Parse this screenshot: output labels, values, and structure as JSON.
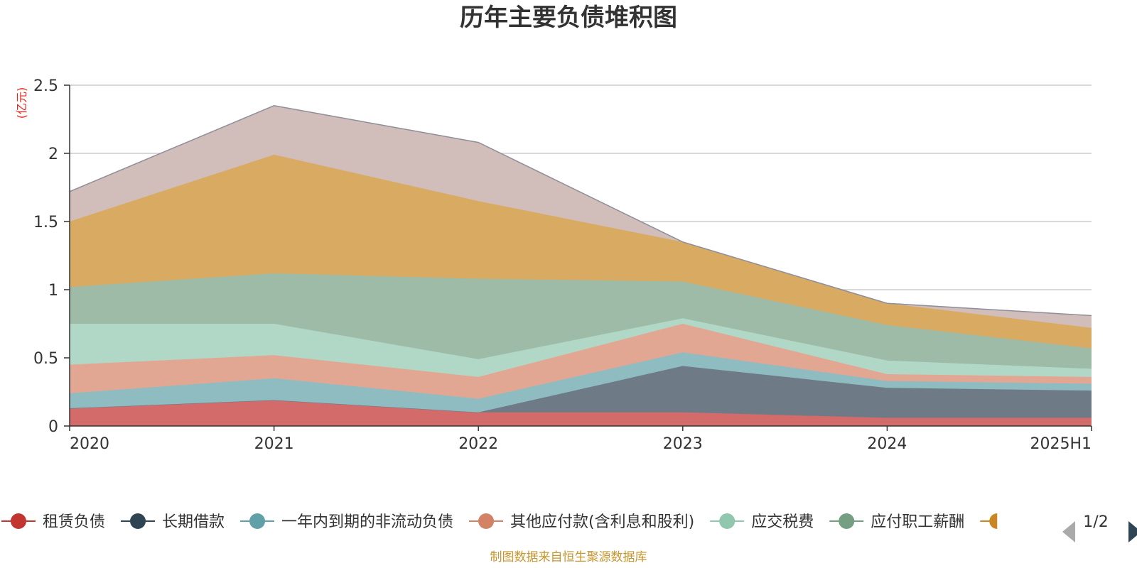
{
  "chart_data": {
    "type": "area",
    "stacked": true,
    "title": "历年主要负债堆积图",
    "ylabel": "(亿元)",
    "ylim": [
      0,
      2.5
    ],
    "y_ticks": [
      "0",
      "0.5",
      "1",
      "1.5",
      "2",
      "2.5"
    ],
    "categories": [
      "2020",
      "2021",
      "2022",
      "2023",
      "2024",
      "2025H1"
    ],
    "series": [
      {
        "name": "租赁负债",
        "color": "#d46b6b",
        "marker": "#c23531",
        "values": [
          0.13,
          0.19,
          0.1,
          0.1,
          0.06,
          0.06
        ]
      },
      {
        "name": "长期借款",
        "color": "#6e7b87",
        "marker": "#2f4554",
        "values": [
          0.0,
          0.0,
          0.0,
          0.34,
          0.22,
          0.2
        ]
      },
      {
        "name": "一年内到期的非流动负债",
        "color": "#8fbcc1",
        "marker": "#61a0a8",
        "values": [
          0.11,
          0.16,
          0.1,
          0.1,
          0.05,
          0.05
        ]
      },
      {
        "name": "其他应付款(含利息和股利)",
        "color": "#e2a793",
        "marker": "#d48265",
        "values": [
          0.21,
          0.17,
          0.16,
          0.21,
          0.05,
          0.05
        ]
      },
      {
        "name": "应交税费",
        "color": "#b1d8c6",
        "marker": "#91c7ae",
        "values": [
          0.3,
          0.23,
          0.13,
          0.04,
          0.1,
          0.06
        ]
      },
      {
        "name": "应付职工薪酬",
        "color": "#9dbba7",
        "marker": "#749f83",
        "values": [
          0.27,
          0.37,
          0.59,
          0.27,
          0.26,
          0.15
        ]
      },
      {
        "name": "",
        "color": "#d9aa62",
        "marker": "#ca8622",
        "values": [
          0.48,
          0.87,
          0.57,
          0.29,
          0.16,
          0.15
        ]
      },
      {
        "name": "",
        "color": "#d1bdb9",
        "marker": "#bda29a",
        "values": [
          0.22,
          0.36,
          0.43,
          0.0,
          0.0,
          0.09
        ]
      }
    ]
  },
  "legend": {
    "page": "1/2"
  },
  "footer": {
    "source": "制图数据来自恒生聚源数据库"
  }
}
